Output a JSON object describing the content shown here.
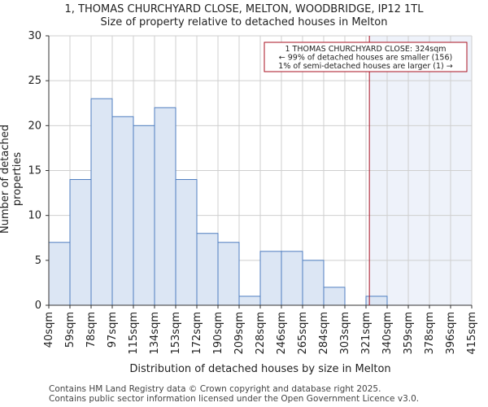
{
  "chart_data": {
    "type": "bar",
    "title": "1, THOMAS CHURCHYARD CLOSE, MELTON, WOODBRIDGE, IP12 1TL",
    "subtitle": "Size of property relative to detached houses in Melton",
    "xlabel": "Distribution of detached houses by size in Melton",
    "ylabel": "Number of detached properties",
    "ylim": [
      0,
      30
    ],
    "yticks": [
      0,
      5,
      10,
      15,
      20,
      25,
      30
    ],
    "bin_edges": [
      "40sqm",
      "59sqm",
      "78sqm",
      "97sqm",
      "115sqm",
      "134sqm",
      "153sqm",
      "172sqm",
      "190sqm",
      "209sqm",
      "228sqm",
      "246sqm",
      "265sqm",
      "284sqm",
      "303sqm",
      "321sqm",
      "340sqm",
      "359sqm",
      "378sqm",
      "396sqm",
      "415sqm"
    ],
    "values": [
      7,
      14,
      23,
      21,
      20,
      22,
      14,
      8,
      7,
      1,
      6,
      6,
      5,
      2,
      0,
      1,
      0,
      0,
      0,
      0
    ],
    "marker_value_sqm": 324,
    "marker_bin_position": 15.16,
    "grid": true,
    "annotation": {
      "line1": "1 THOMAS CHURCHYARD CLOSE: 324sqm",
      "line2": "← 99% of detached houses are smaller (156)",
      "line3": "1% of semi-detached houses are larger (1) →"
    },
    "colors": {
      "bar_fill": "#dce6f4",
      "bar_stroke": "#4f7ec0",
      "highlight_fill": "#eef2fa",
      "marker": "#aa1122",
      "grid": "#cfcfcf"
    }
  },
  "footer": {
    "line1": "Contains HM Land Registry data © Crown copyright and database right 2025.",
    "line2": "Contains public sector information licensed under the Open Government Licence v3.0."
  }
}
